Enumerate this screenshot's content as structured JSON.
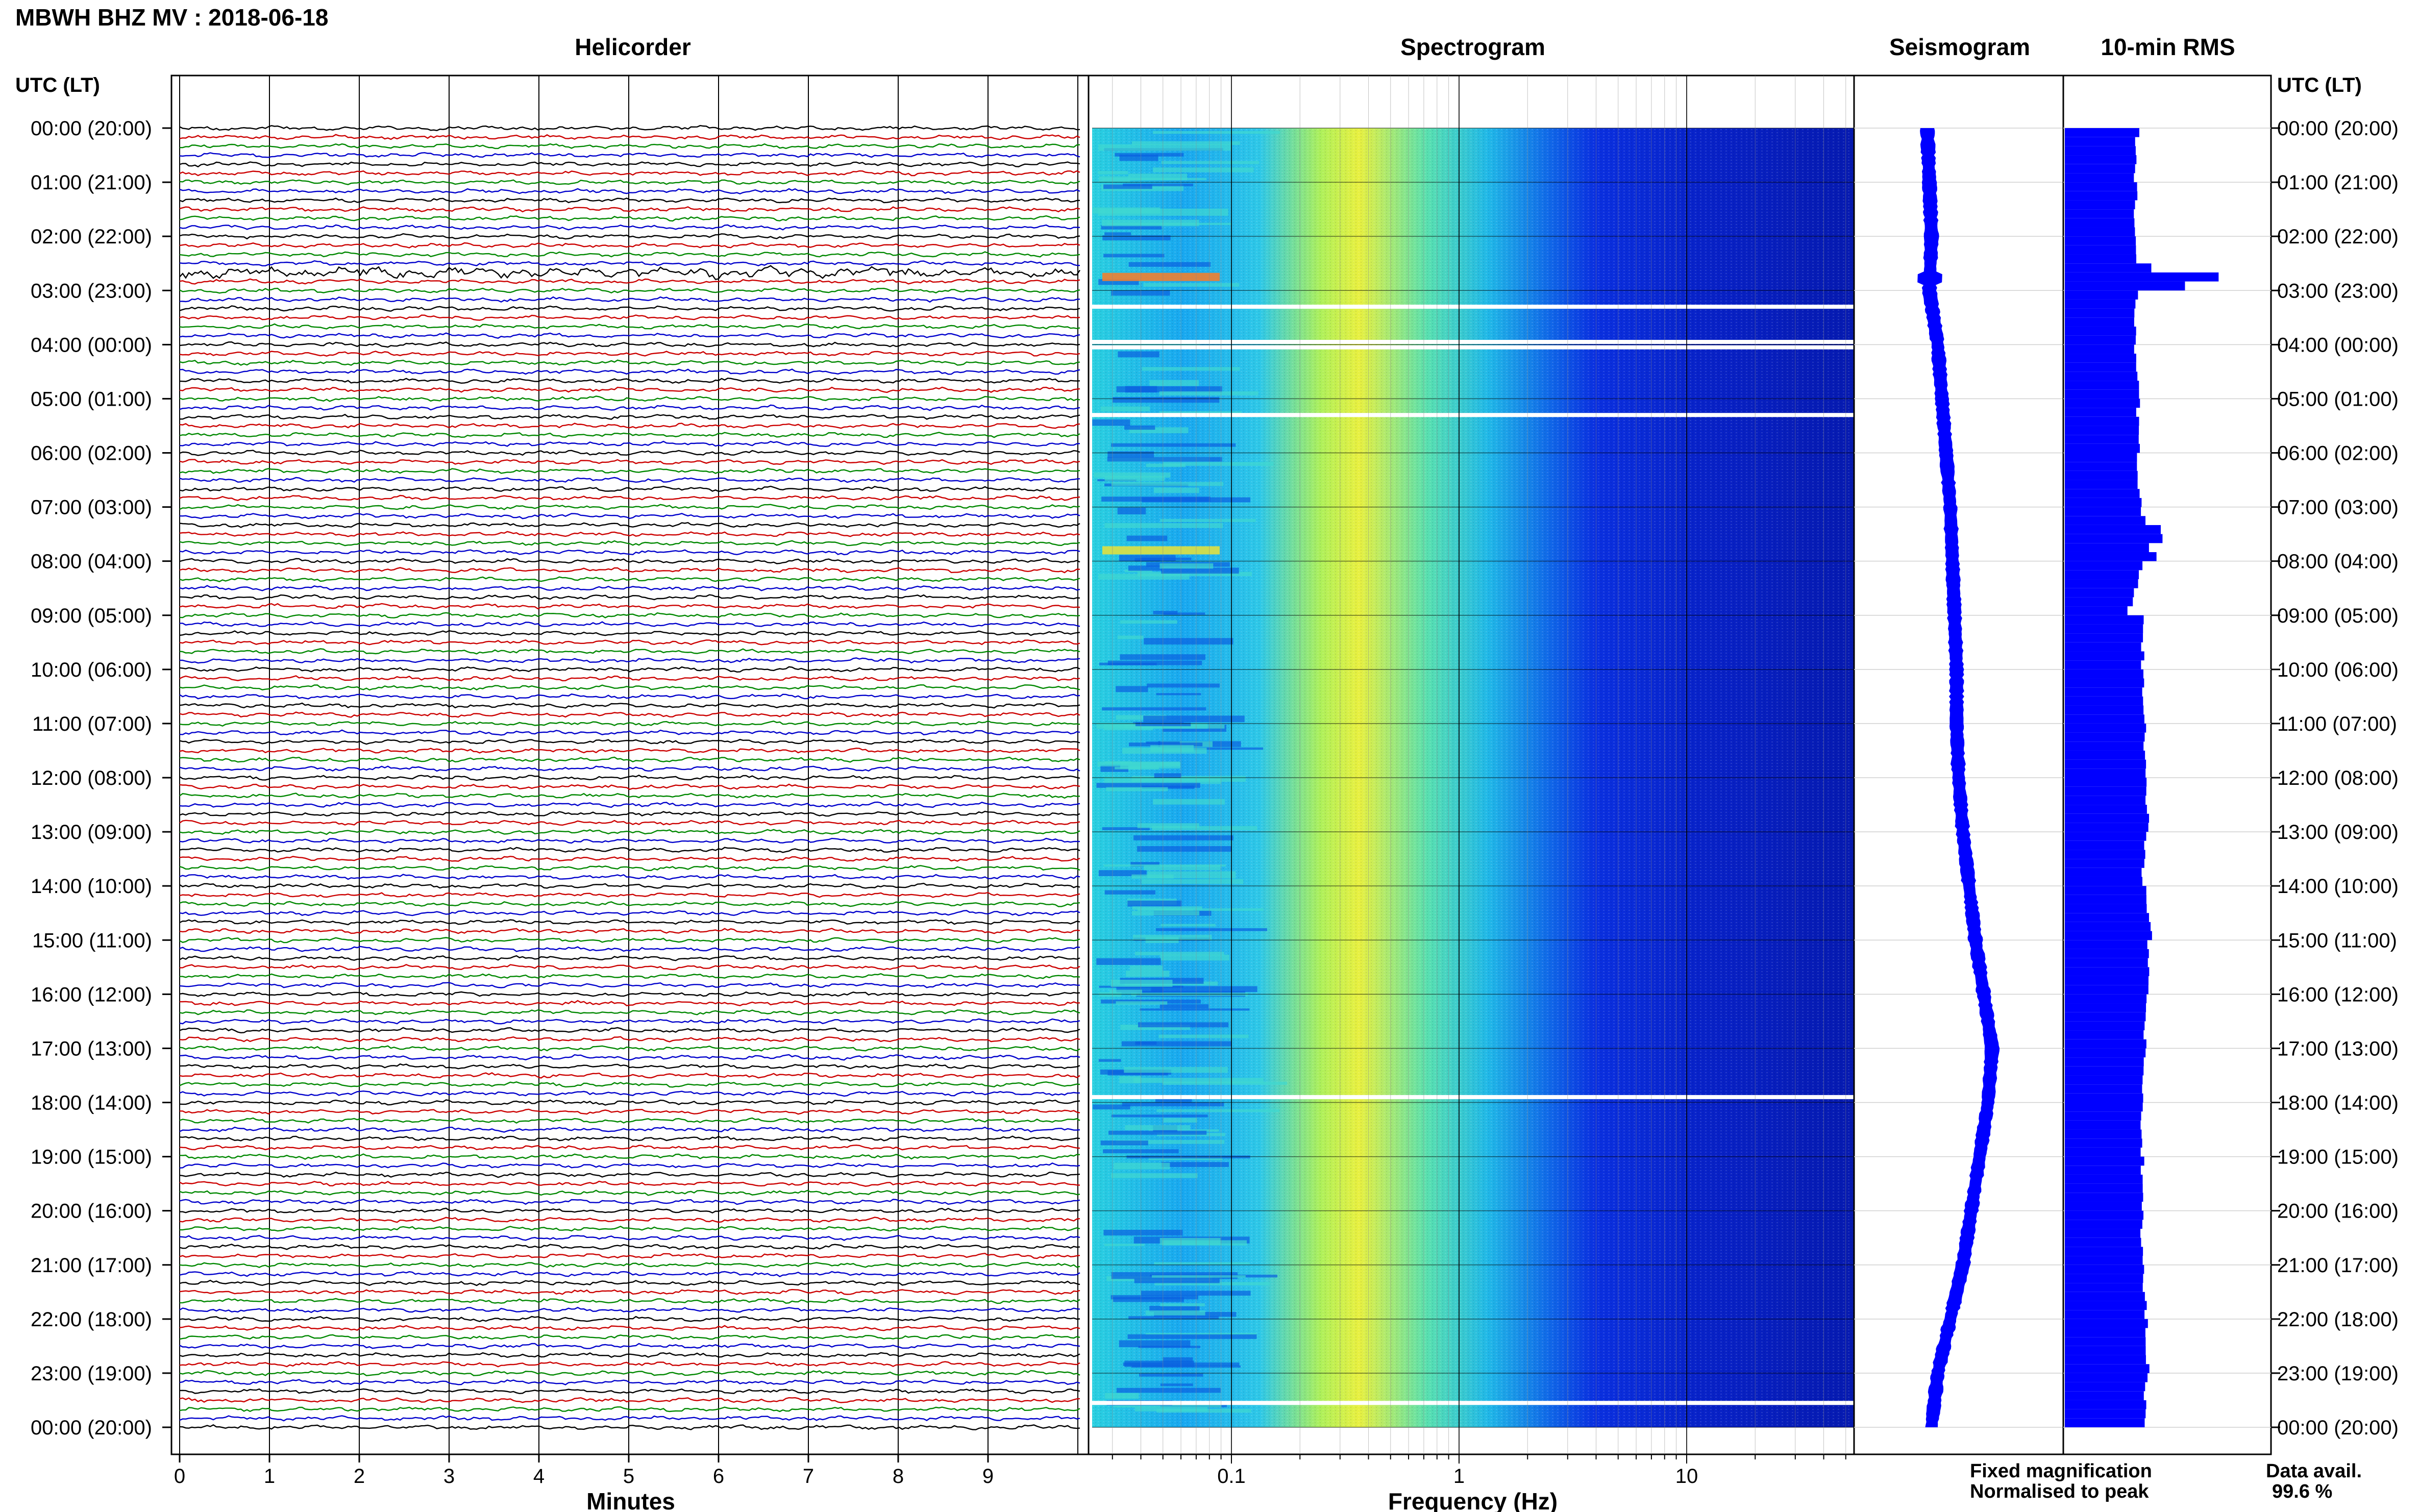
{
  "header": {
    "station_title": "MBWH BHZ MV : 2018-06-18"
  },
  "left_axis_title": "UTC (LT)",
  "right_axis_title": "UTC (LT)",
  "time_labels": [
    "00:00 (20:00)",
    "01:00 (21:00)",
    "02:00 (22:00)",
    "03:00 (23:00)",
    "04:00 (00:00)",
    "05:00 (01:00)",
    "06:00 (02:00)",
    "07:00 (03:00)",
    "08:00 (04:00)",
    "09:00 (05:00)",
    "10:00 (06:00)",
    "11:00 (07:00)",
    "12:00 (08:00)",
    "13:00 (09:00)",
    "14:00 (10:00)",
    "15:00 (11:00)",
    "16:00 (12:00)",
    "17:00 (13:00)",
    "18:00 (14:00)",
    "19:00 (15:00)",
    "20:00 (16:00)",
    "21:00 (17:00)",
    "22:00 (18:00)",
    "23:00 (19:00)",
    "00:00 (20:00)"
  ],
  "legend": {
    "fixed": "Fixed magnification",
    "normalised": "Normalised to peak",
    "fixed_color": "#0000ff",
    "normalised_color": "#ff0000"
  },
  "availability": {
    "label": "Data avail.",
    "value": "99.6 %"
  },
  "colors": {
    "trace_cycle": [
      "#000000",
      "#cc0000",
      "#008800",
      "#0000cc"
    ],
    "seismogram": "#0000ff",
    "rms": "#0000ff"
  },
  "chart_data": [
    {
      "type": "line",
      "title": "Helicorder",
      "xlabel": "Minutes",
      "ylabel": "UTC (LT)",
      "xlim": [
        0,
        10
      ],
      "x_ticks": [
        "0",
        "1",
        "2",
        "3",
        "4",
        "5",
        "6",
        "7",
        "8",
        "9"
      ],
      "traces_per_hour": 6,
      "rows": 145
    },
    {
      "type": "heatmap",
      "title": "Spectrogram",
      "xlabel": "Frequency (Hz)",
      "x_scale": "log",
      "xlim": [
        0.02,
        50
      ],
      "x_ticks": [
        "0.1",
        "1",
        "10"
      ],
      "gaps_utc_hours": [
        3.3,
        3.95,
        4.05,
        5.3,
        17.9,
        23.55
      ]
    },
    {
      "type": "line",
      "title": "Seismogram",
      "drift_profile": [
        [
          0,
          0.35
        ],
        [
          1,
          0.36
        ],
        [
          2,
          0.37
        ],
        [
          3,
          0.36
        ],
        [
          4,
          0.4
        ],
        [
          5,
          0.42
        ],
        [
          6,
          0.44
        ],
        [
          7,
          0.46
        ],
        [
          8,
          0.47
        ],
        [
          9,
          0.48
        ],
        [
          10,
          0.49
        ],
        [
          11,
          0.49
        ],
        [
          12,
          0.5
        ],
        [
          13,
          0.52
        ],
        [
          14,
          0.55
        ],
        [
          15,
          0.58
        ],
        [
          16,
          0.62
        ],
        [
          17,
          0.66
        ],
        [
          18,
          0.64
        ],
        [
          19,
          0.6
        ],
        [
          20,
          0.56
        ],
        [
          21,
          0.52
        ],
        [
          22,
          0.46
        ],
        [
          23,
          0.4
        ],
        [
          24,
          0.37
        ]
      ]
    },
    {
      "type": "bar",
      "title": "10-min RMS",
      "orientation": "horizontal",
      "hours": [
        0,
        1,
        2,
        3,
        4,
        5,
        6,
        7,
        8,
        9,
        10,
        11,
        12,
        13,
        14,
        15,
        16,
        17,
        18,
        19,
        20,
        21,
        22,
        23,
        24
      ],
      "relative_rms": [
        0.38,
        0.36,
        0.35,
        0.66,
        0.35,
        0.36,
        0.36,
        0.37,
        0.45,
        0.38,
        0.38,
        0.39,
        0.39,
        0.42,
        0.4,
        0.42,
        0.41,
        0.4,
        0.39,
        0.38,
        0.38,
        0.38,
        0.4,
        0.41,
        0.4
      ],
      "spikes": [
        [
          2.6,
          0.42
        ],
        [
          2.7,
          0.75
        ],
        [
          2.85,
          0.58
        ],
        [
          7.4,
          0.46
        ],
        [
          7.6,
          0.48
        ],
        [
          7.8,
          0.42
        ]
      ]
    }
  ]
}
